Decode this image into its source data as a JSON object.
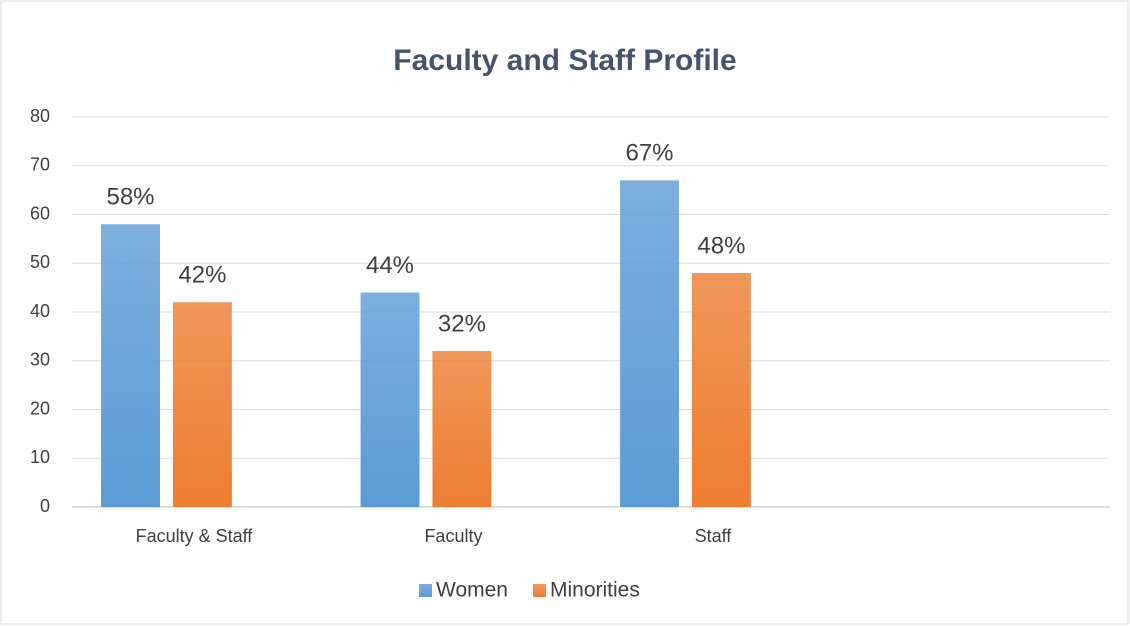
{
  "chart_data": {
    "type": "bar",
    "title": "Faculty and Staff Profile",
    "categories": [
      "Faculty & Staff",
      "Faculty",
      "Staff",
      null
    ],
    "series": [
      {
        "name": "Women",
        "color": "#5b9bd5",
        "values": [
          58,
          44,
          67,
          null
        ],
        "value_labels": [
          "58%",
          "44%",
          "67%",
          null
        ]
      },
      {
        "name": "Minorities",
        "color": "#ed7d31",
        "values": [
          42,
          32,
          48,
          null
        ],
        "value_labels": [
          "42%",
          "32%",
          "48%",
          null
        ]
      }
    ],
    "ylim": [
      0,
      80
    ],
    "yticks": [
      0,
      10,
      20,
      30,
      40,
      50,
      60,
      70,
      80
    ],
    "grid": true,
    "legend": "bottom"
  }
}
